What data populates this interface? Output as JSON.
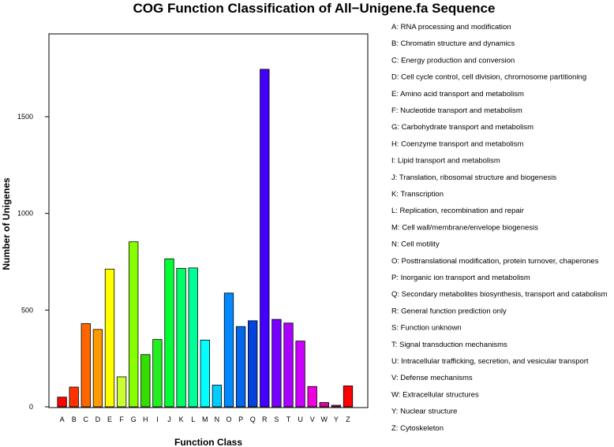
{
  "chart_data": {
    "type": "bar",
    "title": "COG Function Classification of All−Unigene.fa Sequence",
    "xlabel": "Function Class",
    "ylabel": "Number of Unigenes",
    "ylim": [
      0,
      1800
    ],
    "yticks": [
      0,
      500,
      1000,
      1500
    ],
    "grid": false,
    "legend_position": "right",
    "categories": [
      "A",
      "B",
      "C",
      "D",
      "E",
      "F",
      "G",
      "H",
      "I",
      "J",
      "K",
      "L",
      "M",
      "N",
      "O",
      "P",
      "Q",
      "R",
      "S",
      "T",
      "U",
      "V",
      "W",
      "Y",
      "Z"
    ],
    "values": [
      50,
      102,
      430,
      400,
      712,
      155,
      853,
      270,
      348,
      765,
      716,
      718,
      345,
      112,
      588,
      415,
      445,
      1745,
      452,
      433,
      340,
      105,
      22,
      8,
      108
    ],
    "colors": [
      "#FF0000",
      "#FF3300",
      "#FF6600",
      "#FF9900",
      "#FFFF00",
      "#CCFF33",
      "#88FF00",
      "#33DD00",
      "#22EE22",
      "#00FF33",
      "#00FF66",
      "#00FF99",
      "#00FFFF",
      "#00CCFF",
      "#0088FF",
      "#0066EE",
      "#0044DD",
      "#4400FF",
      "#7700FF",
      "#AA00FF",
      "#CC00FF",
      "#EE00DD",
      "#DD0099",
      "#BB0066",
      "#FF0000"
    ],
    "legend": [
      "A: RNA processing and modification",
      "B: Chromatin structure and dynamics",
      "C: Energy production and conversion",
      "D: Cell cycle control, cell division, chromosome partitioning",
      "E: Amino acid transport and metabolism",
      "F: Nucleotide transport and metabolism",
      "G: Carbohydrate transport and metabolism",
      "H: Coenzyme transport and metabolism",
      "I: Lipid transport and metabolism",
      "J: Translation, ribosomal structure and biogenesis",
      "K: Transcription",
      "L: Replication, recombination and repair",
      "M: Cell wall/membrane/envelope biogenesis",
      "N: Cell motility",
      "O: Posttranslational modification, protein turnover, chaperones",
      "P: Inorganic ion transport and metabolism",
      "Q: Secondary metabolites biosynthesis, transport and catabolism",
      "R: General function prediction only",
      "S: Function unknown",
      "T: Signal transduction mechanisms",
      "U: Intracellular trafficking, secretion, and vesicular transport",
      "V: Defense mechanisms",
      "W: Extracellular structures",
      "Y: Nuclear structure",
      "Z: Cytoskeleton"
    ]
  }
}
